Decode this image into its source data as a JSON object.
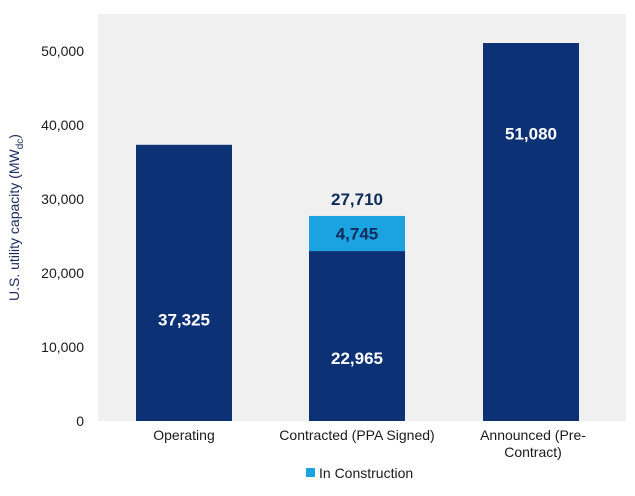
{
  "chart_data": {
    "type": "bar",
    "stacked": true,
    "categories": [
      "Operating",
      "Contracted (PPA Signed)",
      "Announced (Pre-Contract)"
    ],
    "category_lines": [
      [
        "Operating"
      ],
      [
        "Contracted (PPA Signed)"
      ],
      [
        "Announced (Pre-",
        "Contract)"
      ]
    ],
    "series": [
      {
        "values": [
          37325,
          22965,
          51080
        ],
        "color": "#0d3175",
        "label_color": "#ffffff"
      },
      {
        "name": "In Construction",
        "values": [
          0,
          4745,
          0
        ],
        "color": "#1aa3e0",
        "label_color": "#0d2a5a"
      }
    ],
    "totals": [
      null,
      27710,
      null
    ],
    "data_labels": [
      [
        "37,325",
        "22,965",
        "51,080"
      ],
      [
        "",
        "4,745",
        ""
      ]
    ],
    "total_labels": [
      "",
      "27,710",
      ""
    ],
    "ylabel_main": "U.S. utility capacity (MW",
    "ylabel_sub": "dc",
    "ylabel_close": ")",
    "ylim": [
      0,
      55000
    ],
    "yticks": [
      0,
      10000,
      20000,
      30000,
      40000,
      50000
    ],
    "ytick_labels": [
      "0",
      "10,000",
      "20,000",
      "30,000",
      "40,000",
      "50,000"
    ],
    "legend": {
      "position": "bottom",
      "entries": [
        "In Construction"
      ]
    },
    "plot_background": "#f0f0f0",
    "grid": false
  }
}
